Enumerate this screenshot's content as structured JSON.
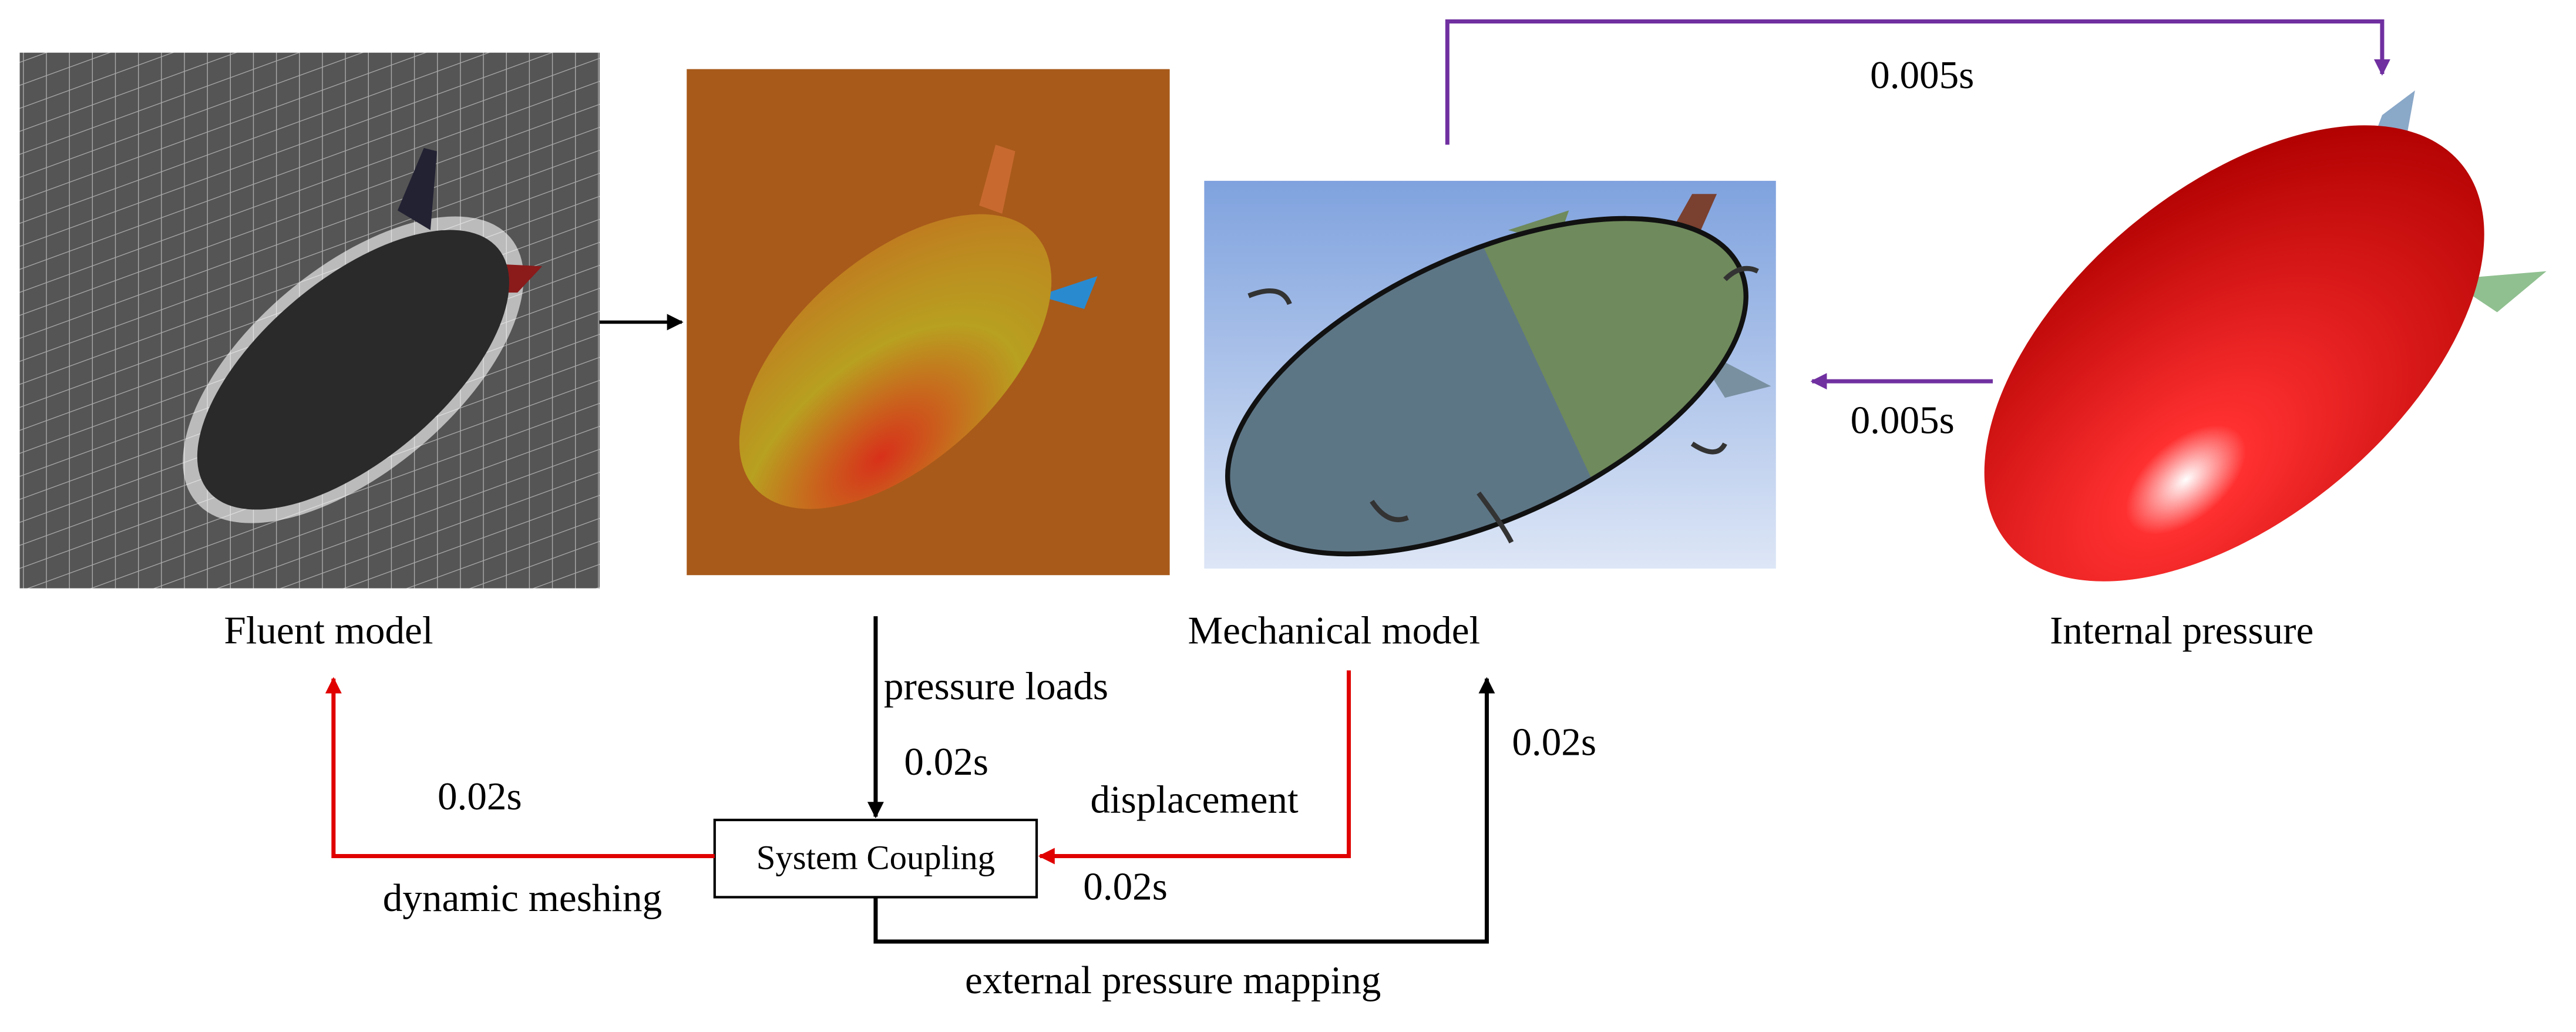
{
  "nodes": [
    {
      "label": "Fluent model"
    },
    {
      "label": "Mechanical model"
    },
    {
      "label": "Internal pressure"
    },
    {
      "label": "System Coupling"
    }
  ],
  "edges": [
    {
      "time": "0.005s"
    },
    {
      "time": "0.005s"
    },
    {
      "label": "pressure loads",
      "time": "0.02s"
    },
    {
      "label": "displacement",
      "time": "0.02s"
    },
    {
      "label": "dynamic meshing",
      "time": "0.02s"
    },
    {
      "label": "external pressure mapping",
      "time": "0.02s"
    }
  ]
}
